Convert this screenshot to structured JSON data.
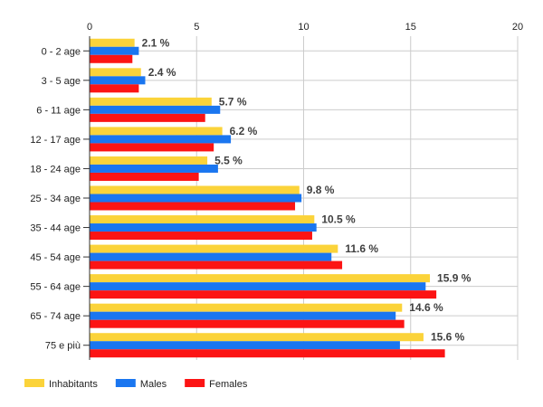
{
  "chart_data": {
    "type": "bar",
    "orientation": "horizontal",
    "categories": [
      "0 - 2 age",
      "3 - 5 age",
      "6 - 11 age",
      "12 - 17 age",
      "18 - 24 age",
      "25 - 34 age",
      "35 - 44 age",
      "45 - 54 age",
      "55 - 64 age",
      "65 - 74 age",
      "75 e più"
    ],
    "series": [
      {
        "name": "Inhabitants",
        "color": "#fbd33a",
        "values": [
          2.1,
          2.4,
          5.7,
          6.2,
          5.5,
          9.8,
          10.5,
          11.6,
          15.9,
          14.6,
          15.6
        ]
      },
      {
        "name": "Males",
        "color": "#1a76f0",
        "values": [
          2.3,
          2.6,
          6.1,
          6.6,
          6.0,
          9.9,
          10.6,
          11.3,
          15.7,
          14.3,
          14.5
        ]
      },
      {
        "name": "Females",
        "color": "#fc1414",
        "values": [
          2.0,
          2.3,
          5.4,
          5.8,
          5.1,
          9.6,
          10.4,
          11.8,
          16.2,
          14.7,
          16.6
        ]
      }
    ],
    "data_labels": [
      "2.1 %",
      "2.4 %",
      "5.7 %",
      "6.2 %",
      "5.5 %",
      "9.8 %",
      "10.5 %",
      "11.6 %",
      "15.9 %",
      "14.6 %",
      "15.6 %"
    ],
    "xlim": [
      0,
      20
    ],
    "xticks": [
      "0",
      "5",
      "10",
      "15",
      "20"
    ],
    "x_axis_position": "top",
    "grid": true,
    "legend_position": "bottom-left"
  }
}
